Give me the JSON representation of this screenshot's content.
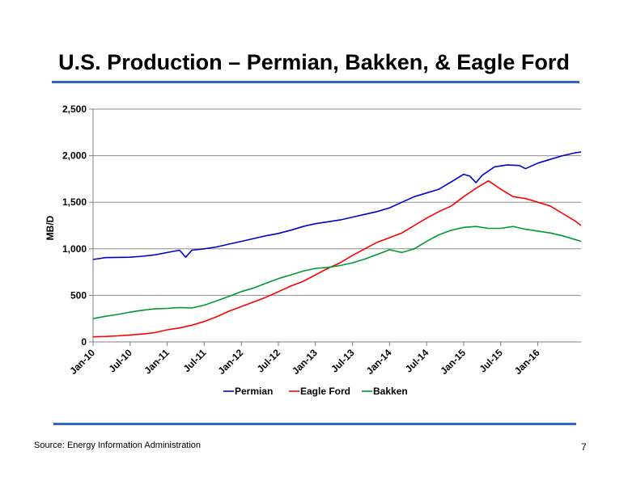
{
  "slide": {
    "title": "U.S. Production – Permian, Bakken, & Eagle Ford",
    "source": "Source: Energy Information Administration",
    "page_number": "7"
  },
  "chart_data": {
    "type": "line",
    "title": "",
    "xlabel": "",
    "ylabel": "MB/D",
    "ylim": [
      0,
      2500
    ],
    "yticks": [
      0,
      500,
      1000,
      1500,
      2000,
      2500
    ],
    "ytick_labels": [
      "0",
      "500",
      "1,000",
      "1,500",
      "2,000",
      "2,500"
    ],
    "xlim": [
      "2010-01",
      "2016-08"
    ],
    "xticks": [
      "2010-01",
      "2010-07",
      "2011-01",
      "2011-07",
      "2012-01",
      "2012-07",
      "2013-01",
      "2013-07",
      "2014-01",
      "2014-07",
      "2015-01",
      "2015-07",
      "2016-01"
    ],
    "xtick_labels": [
      "Jan-10",
      "Jul-10",
      "Jan-11",
      "Jul-11",
      "Jan-12",
      "Jul-12",
      "Jan-13",
      "Jul-13",
      "Jan-14",
      "Jul-14",
      "Jan-15",
      "Jul-15",
      "Jan-16"
    ],
    "grid": "horizontal",
    "legend_position": "bottom",
    "series": [
      {
        "name": "Permian",
        "color": "#0000cc",
        "points": [
          [
            "2010-01",
            885
          ],
          [
            "2010-03",
            905
          ],
          [
            "2010-05",
            908
          ],
          [
            "2010-07",
            910
          ],
          [
            "2010-09",
            920
          ],
          [
            "2010-11",
            935
          ],
          [
            "2011-01",
            960
          ],
          [
            "2011-03",
            985
          ],
          [
            "2011-04",
            910
          ],
          [
            "2011-05",
            985
          ],
          [
            "2011-07",
            1000
          ],
          [
            "2011-09",
            1020
          ],
          [
            "2011-11",
            1050
          ],
          [
            "2012-01",
            1080
          ],
          [
            "2012-03",
            1110
          ],
          [
            "2012-05",
            1140
          ],
          [
            "2012-07",
            1165
          ],
          [
            "2012-09",
            1200
          ],
          [
            "2012-11",
            1240
          ],
          [
            "2013-01",
            1270
          ],
          [
            "2013-03",
            1290
          ],
          [
            "2013-05",
            1310
          ],
          [
            "2013-07",
            1340
          ],
          [
            "2013-09",
            1370
          ],
          [
            "2013-11",
            1400
          ],
          [
            "2014-01",
            1440
          ],
          [
            "2014-03",
            1500
          ],
          [
            "2014-05",
            1560
          ],
          [
            "2014-07",
            1600
          ],
          [
            "2014-09",
            1640
          ],
          [
            "2014-11",
            1720
          ],
          [
            "2015-01",
            1800
          ],
          [
            "2015-02",
            1780
          ],
          [
            "2015-03",
            1710
          ],
          [
            "2015-04",
            1790
          ],
          [
            "2015-06",
            1880
          ],
          [
            "2015-08",
            1900
          ],
          [
            "2015-10",
            1895
          ],
          [
            "2015-11",
            1860
          ],
          [
            "2016-01",
            1920
          ],
          [
            "2016-03",
            1960
          ],
          [
            "2016-05",
            2000
          ],
          [
            "2016-07",
            2030
          ],
          [
            "2016-08",
            2040
          ]
        ]
      },
      {
        "name": "Eagle Ford",
        "color": "#ff0000",
        "points": [
          [
            "2010-01",
            55
          ],
          [
            "2010-03",
            58
          ],
          [
            "2010-05",
            65
          ],
          [
            "2010-07",
            75
          ],
          [
            "2010-09",
            85
          ],
          [
            "2010-11",
            100
          ],
          [
            "2011-01",
            130
          ],
          [
            "2011-03",
            150
          ],
          [
            "2011-05",
            180
          ],
          [
            "2011-07",
            220
          ],
          [
            "2011-09",
            270
          ],
          [
            "2011-11",
            330
          ],
          [
            "2012-01",
            380
          ],
          [
            "2012-03",
            430
          ],
          [
            "2012-05",
            480
          ],
          [
            "2012-07",
            540
          ],
          [
            "2012-09",
            600
          ],
          [
            "2012-11",
            650
          ],
          [
            "2013-01",
            720
          ],
          [
            "2013-03",
            790
          ],
          [
            "2013-05",
            850
          ],
          [
            "2013-07",
            930
          ],
          [
            "2013-09",
            1000
          ],
          [
            "2013-11",
            1070
          ],
          [
            "2014-01",
            1120
          ],
          [
            "2014-03",
            1170
          ],
          [
            "2014-05",
            1250
          ],
          [
            "2014-07",
            1330
          ],
          [
            "2014-09",
            1400
          ],
          [
            "2014-11",
            1460
          ],
          [
            "2015-01",
            1560
          ],
          [
            "2015-03",
            1650
          ],
          [
            "2015-05",
            1730
          ],
          [
            "2015-07",
            1640
          ],
          [
            "2015-09",
            1560
          ],
          [
            "2015-11",
            1540
          ],
          [
            "2016-01",
            1500
          ],
          [
            "2016-03",
            1460
          ],
          [
            "2016-05",
            1380
          ],
          [
            "2016-07",
            1300
          ],
          [
            "2016-08",
            1250
          ]
        ]
      },
      {
        "name": "Bakken",
        "color": "#009933",
        "points": [
          [
            "2010-01",
            250
          ],
          [
            "2010-03",
            275
          ],
          [
            "2010-05",
            295
          ],
          [
            "2010-07",
            320
          ],
          [
            "2010-09",
            340
          ],
          [
            "2010-11",
            355
          ],
          [
            "2011-01",
            360
          ],
          [
            "2011-03",
            370
          ],
          [
            "2011-05",
            365
          ],
          [
            "2011-07",
            395
          ],
          [
            "2011-09",
            440
          ],
          [
            "2011-11",
            490
          ],
          [
            "2012-01",
            540
          ],
          [
            "2012-03",
            580
          ],
          [
            "2012-05",
            630
          ],
          [
            "2012-07",
            680
          ],
          [
            "2012-09",
            720
          ],
          [
            "2012-11",
            760
          ],
          [
            "2013-01",
            790
          ],
          [
            "2013-03",
            800
          ],
          [
            "2013-05",
            820
          ],
          [
            "2013-07",
            850
          ],
          [
            "2013-09",
            890
          ],
          [
            "2013-11",
            940
          ],
          [
            "2014-01",
            990
          ],
          [
            "2014-03",
            960
          ],
          [
            "2014-05",
            1000
          ],
          [
            "2014-07",
            1080
          ],
          [
            "2014-09",
            1150
          ],
          [
            "2014-11",
            1200
          ],
          [
            "2015-01",
            1230
          ],
          [
            "2015-03",
            1240
          ],
          [
            "2015-05",
            1220
          ],
          [
            "2015-07",
            1220
          ],
          [
            "2015-09",
            1240
          ],
          [
            "2015-11",
            1210
          ],
          [
            "2016-01",
            1190
          ],
          [
            "2016-03",
            1170
          ],
          [
            "2016-05",
            1140
          ],
          [
            "2016-07",
            1100
          ],
          [
            "2016-08",
            1080
          ]
        ]
      }
    ]
  }
}
